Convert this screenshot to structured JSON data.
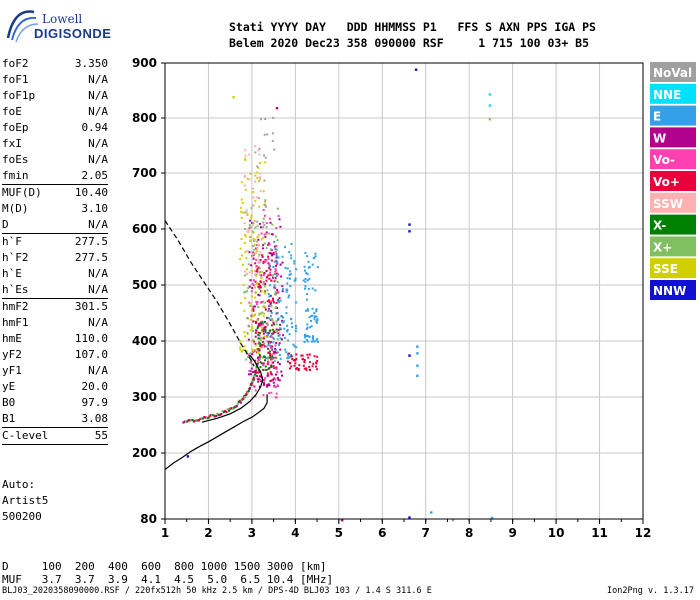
{
  "logo": {
    "line1": "Lowell",
    "line2": "DIGISONDE"
  },
  "header": {
    "row1": "Stati YYYY DAY   DDD HHMMSS P1   FFS S AXN PPS IGA PS",
    "row2": "Belem 2020 Dec23 358 090000 RSF     1 715 100 03+ B5"
  },
  "params": [
    {
      "label": "foF2",
      "value": "3.350"
    },
    {
      "label": "foF1",
      "value": "N/A"
    },
    {
      "label": "foF1p",
      "value": "N/A"
    },
    {
      "label": "foE",
      "value": "N/A"
    },
    {
      "label": "foEp",
      "value": "0.94"
    },
    {
      "label": "fxI",
      "value": "N/A"
    },
    {
      "label": "foEs",
      "value": "N/A"
    },
    {
      "label": "fmin",
      "value": "2.05"
    },
    {
      "sep": true
    },
    {
      "label": "MUF(D)",
      "value": "10.40"
    },
    {
      "label": "M(D)",
      "value": "3.10"
    },
    {
      "label": "D",
      "value": "N/A"
    },
    {
      "sep": true
    },
    {
      "label": "h`F",
      "value": "277.5"
    },
    {
      "label": "h`F2",
      "value": "277.5"
    },
    {
      "label": "h`E",
      "value": "N/A"
    },
    {
      "label": "h`Es",
      "value": "N/A"
    },
    {
      "sep": true
    },
    {
      "label": "hmF2",
      "value": "301.5"
    },
    {
      "label": "hmF1",
      "value": "N/A"
    },
    {
      "label": "hmE",
      "value": "110.0"
    },
    {
      "label": "yF2",
      "value": "107.0"
    },
    {
      "label": "yF1",
      "value": "N/A"
    },
    {
      "label": "yE",
      "value": "20.0"
    },
    {
      "label": "B0",
      "value": "97.9"
    },
    {
      "label": "B1",
      "value": "3.08"
    },
    {
      "sep": true
    },
    {
      "label": "C-level",
      "value": "55"
    },
    {
      "sep": true
    }
  ],
  "autoscale": {
    "line1": "Auto:",
    "line2": "Artist5",
    "line3": "500200"
  },
  "bottom_table": {
    "row1": "D     100  200  400  600  800 1000 1500 3000 [km]",
    "row2": "MUF   3.7  3.7  3.9  4.1  4.5  5.0  6.5 10.4 [MHz]"
  },
  "footer": {
    "left": "BLJ03_2020358090000.RSF / 220fx512h 50 kHz 2.5 km / DPS-4D BLJ03 103 / 1.4 S 311.6 E",
    "right": "Ion2Png v. 1.3.17"
  },
  "chart_data": {
    "type": "scatter",
    "title": "",
    "xlabel": "",
    "ylabel": "",
    "xlim": [
      1,
      12
    ],
    "ylim": [
      80,
      900
    ],
    "x_ticks": [
      1,
      2,
      3,
      4,
      5,
      6,
      7,
      8,
      9,
      10,
      11,
      12
    ],
    "y_ticks": [
      80,
      200,
      300,
      400,
      500,
      600,
      700,
      800,
      900
    ],
    "grid": true,
    "legend_position": "right",
    "legend": [
      {
        "name": "NoVal",
        "color": "#a0a0a0",
        "text": "#ffffff"
      },
      {
        "name": "NNE",
        "color": "#00e0ff",
        "text": "#ffffff"
      },
      {
        "name": "E",
        "color": "#33a0e8",
        "text": "#ffffff"
      },
      {
        "name": "W",
        "color": "#b0008c",
        "text": "#ffffff"
      },
      {
        "name": "Vo-",
        "color": "#ff40b0",
        "text": "#ffffff"
      },
      {
        "name": "Vo+",
        "color": "#e8003c",
        "text": "#ffffff"
      },
      {
        "name": "SSW",
        "color": "#ffb0b0",
        "text": "#ffffff"
      },
      {
        "name": "X-",
        "color": "#008000",
        "text": "#ffffff"
      },
      {
        "name": "X+",
        "color": "#80c060",
        "text": "#ffffff"
      },
      {
        "name": "SSE",
        "color": "#d0d000",
        "text": "#ffffff"
      },
      {
        "name": "NNW",
        "color": "#1010d0",
        "text": "#ffffff"
      }
    ],
    "echo_regions": [
      {
        "color": "#e8003c",
        "x": [
          3.0,
          3.6
        ],
        "y": [
          330,
          560
        ],
        "n": 140
      },
      {
        "color": "#b0008c",
        "x": [
          2.9,
          3.7
        ],
        "y": [
          320,
          620
        ],
        "n": 150
      },
      {
        "color": "#ff40b0",
        "x": [
          2.9,
          3.6
        ],
        "y": [
          300,
          640
        ],
        "n": 90
      },
      {
        "color": "#d0d000",
        "x": [
          2.7,
          3.3
        ],
        "y": [
          380,
          740
        ],
        "n": 110
      },
      {
        "color": "#80c060",
        "x": [
          2.8,
          3.6
        ],
        "y": [
          360,
          660
        ],
        "n": 90
      },
      {
        "color": "#ffb0b0",
        "x": [
          2.8,
          3.2
        ],
        "y": [
          520,
          760
        ],
        "n": 50
      },
      {
        "color": "#33a0e8",
        "x": [
          3.3,
          4.0
        ],
        "y": [
          370,
          580
        ],
        "n": 110
      },
      {
        "color": "#33a0e8",
        "x": [
          4.15,
          4.5
        ],
        "y": [
          400,
          560
        ],
        "n": 70
      },
      {
        "color": "#008000",
        "x": [
          3.1,
          3.5
        ],
        "y": [
          350,
          440
        ],
        "n": 30
      },
      {
        "color": "#e8003c",
        "x": [
          3.8,
          4.5
        ],
        "y": [
          350,
          380
        ],
        "n": 50
      },
      {
        "color": "#a0a0a0",
        "x": [
          3.0,
          3.5
        ],
        "y": [
          560,
          820
        ],
        "n": 25
      }
    ],
    "low_trace": [
      [
        1.4,
        258
      ],
      [
        1.55,
        259
      ],
      [
        1.7,
        261
      ],
      [
        1.85,
        264
      ],
      [
        2.0,
        267
      ],
      [
        2.15,
        270
      ],
      [
        2.3,
        274
      ],
      [
        2.45,
        279
      ],
      [
        2.6,
        286
      ],
      [
        2.72,
        294
      ],
      [
        2.82,
        303
      ],
      [
        2.9,
        313
      ],
      [
        2.97,
        325
      ],
      [
        3.03,
        338
      ],
      [
        3.08,
        352
      ],
      [
        3.12,
        366
      ]
    ],
    "isolated_points": [
      {
        "x": 6.75,
        "y": 890,
        "color": "#1010d0"
      },
      {
        "x": 8.45,
        "y": 845,
        "color": "#00e0ff"
      },
      {
        "x": 8.45,
        "y": 825,
        "color": "#00e0ff"
      },
      {
        "x": 8.45,
        "y": 800,
        "color": "#80c060"
      },
      {
        "x": 6.6,
        "y": 610,
        "color": "#1010d0"
      },
      {
        "x": 6.6,
        "y": 598,
        "color": "#1010d0"
      },
      {
        "x": 6.6,
        "y": 376,
        "color": "#1010d0"
      },
      {
        "x": 6.78,
        "y": 392,
        "color": "#33a0e8"
      },
      {
        "x": 6.78,
        "y": 380,
        "color": "#33a0e8"
      },
      {
        "x": 6.78,
        "y": 358,
        "color": "#33a0e8"
      },
      {
        "x": 6.78,
        "y": 340,
        "color": "#33a0e8"
      },
      {
        "x": 6.6,
        "y": 85,
        "color": "#1010d0"
      },
      {
        "x": 7.1,
        "y": 94,
        "color": "#33a0e8"
      },
      {
        "x": 8.5,
        "y": 84,
        "color": "#33a0e8"
      },
      {
        "x": 5.05,
        "y": 80,
        "color": "#b0008c"
      },
      {
        "x": 7.6,
        "y": 80,
        "color": "#a0a0a0"
      },
      {
        "x": 1.5,
        "y": 196,
        "color": "#1010d0"
      },
      {
        "x": 3.55,
        "y": 820,
        "color": "#b0008c"
      },
      {
        "x": 2.55,
        "y": 840,
        "color": "#d0d000"
      }
    ],
    "profile_true": [
      [
        1.0,
        170
      ],
      [
        1.2,
        182
      ],
      [
        1.4,
        192
      ],
      [
        1.6,
        203
      ],
      [
        1.8,
        212
      ],
      [
        2.0,
        220
      ],
      [
        2.2,
        229
      ],
      [
        2.4,
        238
      ],
      [
        2.6,
        247
      ],
      [
        2.8,
        256
      ],
      [
        3.0,
        264
      ],
      [
        3.15,
        272
      ],
      [
        3.28,
        280
      ],
      [
        3.35,
        290
      ],
      [
        3.35,
        305
      ]
    ],
    "profile_solid_upper": [
      [
        1.85,
        255
      ],
      [
        2.2,
        262
      ],
      [
        2.5,
        270
      ],
      [
        2.75,
        280
      ],
      [
        2.95,
        292
      ],
      [
        3.1,
        305
      ],
      [
        3.2,
        318
      ],
      [
        3.25,
        330
      ],
      [
        3.2,
        345
      ],
      [
        3.05,
        365
      ],
      [
        2.95,
        375
      ]
    ],
    "profile_dashed": [
      [
        1.0,
        615
      ],
      [
        1.3,
        580
      ],
      [
        1.6,
        540
      ],
      [
        1.9,
        505
      ],
      [
        2.2,
        470
      ],
      [
        2.5,
        430
      ],
      [
        2.75,
        395
      ],
      [
        2.95,
        370
      ],
      [
        3.05,
        355
      ]
    ]
  }
}
